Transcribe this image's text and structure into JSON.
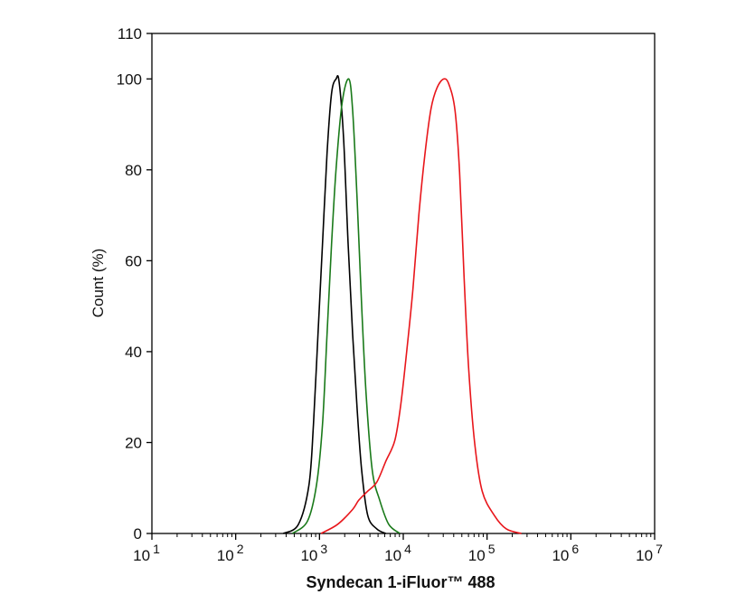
{
  "chart_data": {
    "type": "line",
    "title": "",
    "xlabel": "Syndecan 1-iFluor™ 488",
    "ylabel": "Count  (%)",
    "xscale": "log",
    "xlim": [
      10,
      10000000
    ],
    "ylim": [
      0,
      110
    ],
    "x_tick_labels": [
      {
        "base": "10",
        "exp": "1"
      },
      {
        "base": "10",
        "exp": "2"
      },
      {
        "base": "10",
        "exp": "3"
      },
      {
        "base": "10",
        "exp": "4"
      },
      {
        "base": "10",
        "exp": "5"
      },
      {
        "base": "10",
        "exp": "6"
      },
      {
        "base": "10",
        "exp": "7"
      }
    ],
    "y_ticks": [
      0,
      20,
      40,
      60,
      80,
      100,
      110
    ],
    "grid": false,
    "legend": "none",
    "series": [
      {
        "color": "#000000",
        "x": [
          370,
          560,
          748,
          847,
          959,
          1086,
          1230,
          1393,
          1578,
          1714,
          1941,
          2198,
          2489,
          2818,
          3188,
          3765,
          4830,
          6194
        ],
        "y": [
          0,
          2,
          10.6,
          23.9,
          43.7,
          63.6,
          83.5,
          96.8,
          100,
          99.4,
          86.8,
          63.6,
          43.7,
          27.2,
          13.9,
          4,
          1,
          0
        ]
      },
      {
        "color": "#1a7a1a",
        "x": [
          475,
          718,
          920,
          1086,
          1230,
          1393,
          1578,
          1862,
          2235,
          2489,
          2818,
          3188,
          3606,
          4265,
          5236,
          6714,
          9120
        ],
        "y": [
          0,
          2.7,
          10.6,
          23.9,
          43.7,
          63.6,
          80.2,
          94.7,
          100,
          93,
          73.2,
          50,
          30.5,
          13.9,
          7.3,
          2,
          0
        ]
      },
      {
        "color": "#e8161b",
        "x": [
          1042,
          1644,
          2489,
          2938,
          3765,
          4830,
          6194,
          7940,
          9360,
          11040,
          13030,
          15380,
          18150,
          21420,
          25230,
          30550,
          35220,
          41500,
          46990,
          53210,
          60260,
          71120,
          87500,
          121900,
          169800,
          257000
        ],
        "y": [
          0,
          2,
          5.3,
          7.3,
          9.3,
          11.3,
          15.9,
          20.5,
          28.5,
          40.4,
          53.7,
          70.3,
          83.5,
          93.4,
          98,
          100,
          98.7,
          93,
          79.5,
          56.3,
          36.4,
          19.9,
          9.3,
          4,
          1,
          0
        ]
      }
    ]
  }
}
